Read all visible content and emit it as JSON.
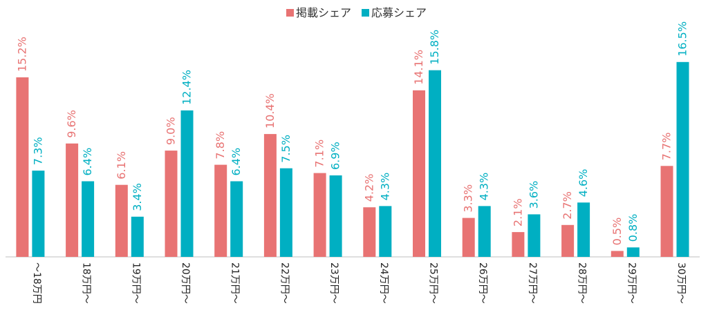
{
  "chart_data": {
    "type": "bar",
    "categories": [
      "～18万円",
      "18万円～",
      "19万円～",
      "20万円～",
      "21万円～",
      "22万円～",
      "23万円～",
      "24万円～",
      "25万円～",
      "26万円～",
      "27万円～",
      "28万円～",
      "29万円～",
      "30万円～"
    ],
    "series": [
      {
        "name": "掲載シェア",
        "color": "#E87373",
        "values": [
          15.2,
          9.6,
          6.1,
          9.0,
          7.8,
          10.4,
          7.1,
          4.2,
          14.1,
          3.3,
          2.1,
          2.7,
          0.5,
          7.7
        ],
        "labels": [
          "15.2%",
          "9.6%",
          "6.1%",
          "9.0%",
          "7.8%",
          "10.4%",
          "7.1%",
          "4.2%",
          "14.1%",
          "3.3%",
          "2.1%",
          "2.7%",
          "0.5%",
          "7.7%"
        ]
      },
      {
        "name": "応募シェア",
        "color": "#00AFC2",
        "values": [
          7.3,
          6.4,
          3.4,
          12.4,
          6.4,
          7.5,
          6.9,
          4.3,
          15.8,
          4.3,
          3.6,
          4.6,
          0.8,
          16.5
        ],
        "labels": [
          "7.3%",
          "6.4%",
          "3.4%",
          "12.4%",
          "6.4%",
          "7.5%",
          "6.9%",
          "4.3%",
          "15.8%",
          "4.3%",
          "3.6%",
          "4.6%",
          "0.8%",
          "16.5%"
        ]
      }
    ],
    "ylim": [
      0,
      17.5
    ],
    "grid": false,
    "legend": "top-center"
  }
}
